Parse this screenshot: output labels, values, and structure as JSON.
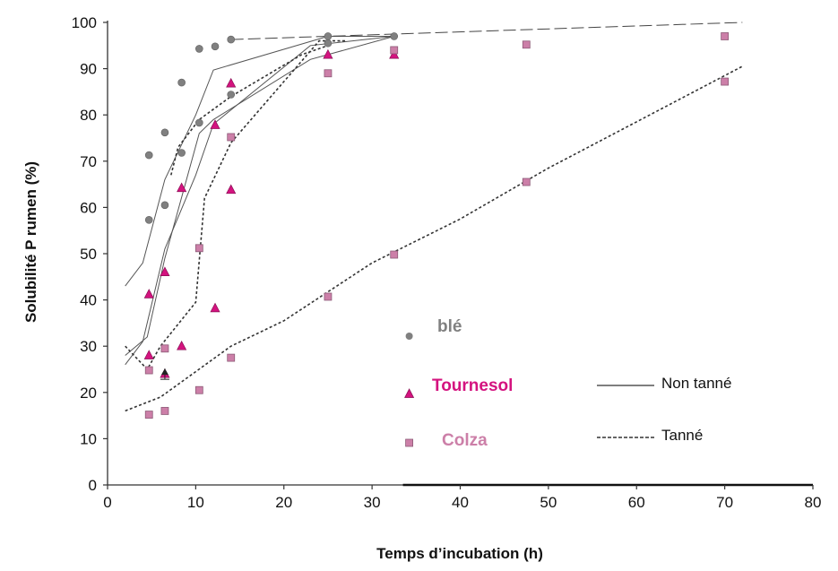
{
  "chart_data": {
    "type": "scatter",
    "xlabel": "Temps d’incubation (h)",
    "ylabel": "Solubilité P rumen (%)",
    "xlim": [
      0,
      80
    ],
    "ylim": [
      0,
      100
    ],
    "xticks": [
      0,
      10,
      20,
      30,
      40,
      50,
      60,
      70,
      80
    ],
    "yticks": [
      0,
      10,
      20,
      30,
      40,
      50,
      60,
      70,
      80,
      90,
      100
    ],
    "grid": false,
    "series": [
      {
        "name": "blé",
        "color": "#808080",
        "marker": "circle",
        "points": [
          [
            4.7,
            71.3
          ],
          [
            6.5,
            76.2
          ],
          [
            8.4,
            87.0
          ],
          [
            10.4,
            94.3
          ],
          [
            12.2,
            94.8
          ],
          [
            14.0,
            96.3
          ],
          [
            25.0,
            97.0
          ],
          [
            32.5,
            97.0
          ],
          [
            4.7,
            57.3
          ],
          [
            6.5,
            60.5
          ],
          [
            8.4,
            71.8
          ],
          [
            10.4,
            78.3
          ],
          [
            14.0,
            84.4
          ],
          [
            25.0,
            95.5
          ]
        ]
      },
      {
        "name": "Tournesol",
        "color": "#d4137f",
        "marker": "triangle",
        "points": [
          [
            4.7,
            41.2
          ],
          [
            6.5,
            46.0
          ],
          [
            8.4,
            64.2
          ],
          [
            12.2,
            77.8
          ],
          [
            14.0,
            86.8
          ],
          [
            25.0,
            93.0
          ],
          [
            32.5,
            93.0
          ],
          [
            4.7,
            28.0
          ],
          [
            8.4,
            30.0
          ],
          [
            12.2,
            38.2
          ],
          [
            14.0,
            63.8
          ],
          [
            6.5,
            24.0
          ]
        ]
      },
      {
        "name": "Colza",
        "color": "#cc7fa8",
        "marker": "square",
        "points": [
          [
            4.7,
            24.8
          ],
          [
            6.5,
            29.5
          ],
          [
            10.4,
            51.2
          ],
          [
            14.0,
            75.2
          ],
          [
            25.0,
            89.0
          ],
          [
            32.5,
            94.0
          ],
          [
            47.5,
            95.2
          ],
          [
            70.0,
            97.0
          ],
          [
            4.7,
            15.2
          ],
          [
            6.5,
            16.0
          ],
          [
            10.4,
            20.5
          ],
          [
            14.0,
            27.5
          ],
          [
            25.0,
            40.7
          ],
          [
            32.5,
            49.8
          ],
          [
            47.5,
            65.5
          ],
          [
            70.0,
            87.2
          ]
        ]
      }
    ],
    "curves": [
      {
        "style": "solid",
        "color": "#555555",
        "points": [
          [
            2,
            43
          ],
          [
            4,
            48
          ],
          [
            6.5,
            66
          ],
          [
            10,
            80
          ],
          [
            12,
            89.7
          ],
          [
            25,
            97
          ],
          [
            32.5,
            97
          ]
        ]
      },
      {
        "style": "solid",
        "color": "#555555",
        "points": [
          [
            2,
            28
          ],
          [
            4.5,
            32
          ],
          [
            6.5,
            49
          ],
          [
            10.4,
            76
          ],
          [
            12,
            79
          ],
          [
            23,
            92
          ],
          [
            32.5,
            97
          ]
        ]
      },
      {
        "style": "solid",
        "color": "#555555",
        "points": [
          [
            2,
            26
          ],
          [
            4,
            31
          ],
          [
            6.5,
            51
          ],
          [
            10,
            67
          ],
          [
            12,
            78
          ],
          [
            23,
            95
          ],
          [
            32.5,
            97
          ]
        ]
      },
      {
        "style": "dashed-long",
        "color": "#444444",
        "points": [
          [
            14,
            96.3
          ],
          [
            72,
            100
          ]
        ]
      },
      {
        "style": "dotted",
        "color": "#333333",
        "points": [
          [
            7.2,
            67
          ],
          [
            8,
            73
          ],
          [
            10.4,
            79
          ],
          [
            14,
            84
          ],
          [
            22,
            93
          ],
          [
            25,
            95
          ]
        ]
      },
      {
        "style": "dotted",
        "color": "#333333",
        "points": [
          [
            2,
            30
          ],
          [
            4.5,
            25
          ],
          [
            6,
            30
          ],
          [
            10,
            39.5
          ],
          [
            11,
            62
          ],
          [
            14,
            74
          ],
          [
            24,
            96
          ],
          [
            27,
            96
          ]
        ]
      },
      {
        "style": "dotted",
        "color": "#333333",
        "points": [
          [
            2,
            16
          ],
          [
            6,
            19
          ],
          [
            10,
            24.5
          ],
          [
            14,
            30
          ],
          [
            20,
            35.5
          ],
          [
            30,
            48
          ],
          [
            40,
            57.5
          ],
          [
            50,
            68.5
          ],
          [
            60,
            78.5
          ],
          [
            72,
            90.5
          ]
        ]
      }
    ],
    "error_marker": {
      "x": 6.5,
      "y": 24.0
    }
  },
  "legend": {
    "ble": "blé",
    "tournesol": "Tournesol",
    "colza": "Colza",
    "non_tanne": "Non tanné",
    "tanne": "Tanné"
  }
}
